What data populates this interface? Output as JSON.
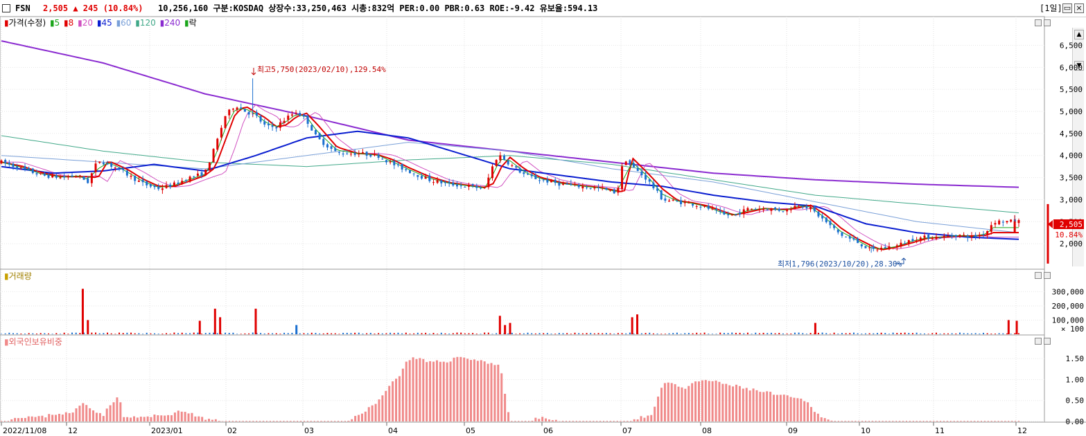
{
  "header": {
    "code": "FSN",
    "price": "2,505",
    "change": "▲ 245 (10.84%)",
    "volume": "10,256,160",
    "info": "구분:KOSDAQ 상장수:33,250,463 시총:832억 PER:0.00 PBR:0.63 ROE:-9.42 유보율:594.13",
    "period": "[1일]",
    "minimize_icon": "minimize-icon",
    "close_icon": "close-icon"
  },
  "price_panel": {
    "legend": {
      "price": "가격(수정)",
      "ma5": "5",
      "ma8": "8",
      "ma20": "20",
      "ma45": "45",
      "ma60": "60",
      "ma120": "120",
      "ma240": "240",
      "drop": "락"
    },
    "high_annotation": "최고5,750(2023/02/10),129.54%",
    "low_annotation": "최저1,796(2023/10/20),28.30%",
    "current_price_tag": "2,505",
    "current_change_tag": "10.84%",
    "y_ticks": [
      "6,500",
      "6,000",
      "5,500",
      "5,000",
      "4,500",
      "4,000",
      "3,500",
      "3,000",
      "2,500",
      "2,000"
    ]
  },
  "volume_panel": {
    "label": "거래량",
    "y_ticks": [
      "300,000",
      "200,000",
      "100,000",
      "× 100"
    ]
  },
  "foreign_panel": {
    "label": "외국인보유비중",
    "y_ticks": [
      "1.50",
      "1.00",
      "0.50",
      "0.00"
    ]
  },
  "x_axis": {
    "ticks": [
      "2022/11/08",
      "12",
      "2023/01",
      "02",
      "03",
      "04",
      "05",
      "06",
      "07",
      "08",
      "09",
      "10",
      "11",
      "12"
    ]
  },
  "colors": {
    "up": "#e00000",
    "down": "#1a6fd0",
    "ma5": "#1aa51a",
    "ma8": "#e00000",
    "ma20": "#d050c0",
    "ma45": "#0a1ed0",
    "ma60": "#7aa0d8",
    "ma120": "#40a888",
    "ma240": "#8a2ad0",
    "foreign_bar": "#f08a8a"
  },
  "chart_data": [
    {
      "type": "candlestick",
      "title": "가격(수정)",
      "ylim": [
        1500,
        6900
      ],
      "x_range": [
        "2022/11/08",
        "2023/12"
      ],
      "price_path": [
        [
          0,
          3850
        ],
        [
          0.02,
          3700
        ],
        [
          0.04,
          3550
        ],
        [
          0.06,
          3500
        ],
        [
          0.075,
          3550
        ],
        [
          0.085,
          3400
        ],
        [
          0.095,
          3900
        ],
        [
          0.105,
          3800
        ],
        [
          0.115,
          3700
        ],
        [
          0.125,
          3550
        ],
        [
          0.14,
          3350
        ],
        [
          0.155,
          3250
        ],
        [
          0.17,
          3350
        ],
        [
          0.185,
          3500
        ],
        [
          0.2,
          3600
        ],
        [
          0.21,
          4200
        ],
        [
          0.22,
          4900
        ],
        [
          0.23,
          5150
        ],
        [
          0.24,
          5000
        ],
        [
          0.25,
          4900
        ],
        [
          0.26,
          4650
        ],
        [
          0.27,
          4650
        ],
        [
          0.28,
          4850
        ],
        [
          0.29,
          5000
        ],
        [
          0.3,
          4800
        ],
        [
          0.31,
          4400
        ],
        [
          0.33,
          4050
        ],
        [
          0.35,
          4050
        ],
        [
          0.37,
          4000
        ],
        [
          0.385,
          3800
        ],
        [
          0.4,
          3650
        ],
        [
          0.42,
          3450
        ],
        [
          0.44,
          3350
        ],
        [
          0.46,
          3300
        ],
        [
          0.475,
          3250
        ],
        [
          0.485,
          3900
        ],
        [
          0.49,
          4000
        ],
        [
          0.5,
          3800
        ],
        [
          0.515,
          3550
        ],
        [
          0.53,
          3450
        ],
        [
          0.55,
          3350
        ],
        [
          0.57,
          3300
        ],
        [
          0.59,
          3250
        ],
        [
          0.605,
          3150
        ],
        [
          0.612,
          3950
        ],
        [
          0.62,
          3750
        ],
        [
          0.635,
          3450
        ],
        [
          0.65,
          3000
        ],
        [
          0.665,
          2950
        ],
        [
          0.68,
          2900
        ],
        [
          0.695,
          2800
        ],
        [
          0.71,
          2650
        ],
        [
          0.72,
          2650
        ],
        [
          0.735,
          2800
        ],
        [
          0.75,
          2800
        ],
        [
          0.77,
          2750
        ],
        [
          0.785,
          2900
        ],
        [
          0.795,
          2800
        ],
        [
          0.81,
          2500
        ],
        [
          0.825,
          2200
        ],
        [
          0.84,
          2050
        ],
        [
          0.855,
          1850
        ],
        [
          0.865,
          1900
        ],
        [
          0.88,
          1950
        ],
        [
          0.895,
          2100
        ],
        [
          0.91,
          2150
        ],
        [
          0.925,
          2150
        ],
        [
          0.94,
          2200
        ],
        [
          0.955,
          2150
        ],
        [
          0.968,
          2260
        ],
        [
          0.975,
          2505
        ]
      ],
      "high": {
        "value": 5750,
        "date": "2023/02/10"
      },
      "low": {
        "value": 1796,
        "date": "2023/10/20"
      },
      "last": 2505,
      "ma240_path": [
        [
          0,
          6600
        ],
        [
          0.1,
          6100
        ],
        [
          0.2,
          5400
        ],
        [
          0.3,
          4900
        ],
        [
          0.4,
          4350
        ],
        [
          0.5,
          4100
        ],
        [
          0.6,
          3850
        ],
        [
          0.7,
          3600
        ],
        [
          0.8,
          3450
        ],
        [
          0.9,
          3350
        ],
        [
          1,
          3280
        ]
      ],
      "ma120_path": [
        [
          0,
          4450
        ],
        [
          0.1,
          4100
        ],
        [
          0.2,
          3850
        ],
        [
          0.3,
          3750
        ],
        [
          0.4,
          3900
        ],
        [
          0.5,
          4000
        ],
        [
          0.6,
          3800
        ],
        [
          0.7,
          3450
        ],
        [
          0.8,
          3100
        ],
        [
          0.9,
          2900
        ],
        [
          1,
          2700
        ]
      ],
      "ma60_path": [
        [
          0,
          4000
        ],
        [
          0.1,
          3850
        ],
        [
          0.2,
          3700
        ],
        [
          0.3,
          4000
        ],
        [
          0.4,
          4300
        ],
        [
          0.5,
          4100
        ],
        [
          0.6,
          3700
        ],
        [
          0.7,
          3400
        ],
        [
          0.8,
          2950
        ],
        [
          0.9,
          2500
        ],
        [
          1,
          2250
        ]
      ],
      "ma45_path": [
        [
          0,
          3750
        ],
        [
          0.05,
          3600
        ],
        [
          0.1,
          3650
        ],
        [
          0.15,
          3800
        ],
        [
          0.2,
          3650
        ],
        [
          0.25,
          4000
        ],
        [
          0.3,
          4400
        ],
        [
          0.35,
          4550
        ],
        [
          0.4,
          4400
        ],
        [
          0.45,
          4050
        ],
        [
          0.5,
          3700
        ],
        [
          0.55,
          3550
        ],
        [
          0.6,
          3400
        ],
        [
          0.65,
          3300
        ],
        [
          0.7,
          3100
        ],
        [
          0.75,
          2950
        ],
        [
          0.8,
          2850
        ],
        [
          0.85,
          2450
        ],
        [
          0.9,
          2250
        ],
        [
          0.95,
          2150
        ],
        [
          1,
          2100
        ]
      ]
    },
    {
      "type": "bar",
      "title": "거래량",
      "unit": "× 100",
      "ylim": [
        0,
        380000
      ],
      "spikes": [
        {
          "x": 0.08,
          "value": 320000
        },
        {
          "x": 0.085,
          "value": 100000
        },
        {
          "x": 0.195,
          "value": 95000
        },
        {
          "x": 0.21,
          "value": 180000
        },
        {
          "x": 0.215,
          "value": 120000
        },
        {
          "x": 0.25,
          "value": 180000
        },
        {
          "x": 0.29,
          "value": 65000
        },
        {
          "x": 0.49,
          "value": 130000
        },
        {
          "x": 0.495,
          "value": 65000
        },
        {
          "x": 0.5,
          "value": 80000
        },
        {
          "x": 0.62,
          "value": 120000
        },
        {
          "x": 0.625,
          "value": 140000
        },
        {
          "x": 0.8,
          "value": 80000
        },
        {
          "x": 0.99,
          "value": 100000
        },
        {
          "x": 0.998,
          "value": 95000
        }
      ]
    },
    {
      "type": "bar",
      "title": "외국인보유비중",
      "ylim": [
        0,
        1.8
      ],
      "profile": [
        [
          0,
          0.0
        ],
        [
          0.02,
          0.12
        ],
        [
          0.04,
          0.1
        ],
        [
          0.05,
          0.18
        ],
        [
          0.07,
          0.2
        ],
        [
          0.08,
          0.45
        ],
        [
          0.1,
          0.15
        ],
        [
          0.115,
          0.65
        ],
        [
          0.12,
          0.1
        ],
        [
          0.14,
          0.1
        ],
        [
          0.16,
          0.15
        ],
        [
          0.18,
          0.25
        ],
        [
          0.2,
          0.05
        ],
        [
          0.22,
          0.0
        ],
        [
          0.34,
          0.0
        ],
        [
          0.35,
          0.15
        ],
        [
          0.37,
          0.45
        ],
        [
          0.38,
          0.85
        ],
        [
          0.39,
          1.05
        ],
        [
          0.4,
          1.5
        ],
        [
          0.41,
          1.5
        ],
        [
          0.42,
          1.4
        ],
        [
          0.44,
          1.45
        ],
        [
          0.45,
          1.55
        ],
        [
          0.46,
          1.5
        ],
        [
          0.47,
          1.45
        ],
        [
          0.49,
          1.35
        ],
        [
          0.5,
          0.0
        ],
        [
          0.52,
          0.0
        ],
        [
          0.53,
          0.1
        ],
        [
          0.55,
          0.0
        ],
        [
          0.62,
          0.0
        ],
        [
          0.64,
          0.2
        ],
        [
          0.65,
          0.9
        ],
        [
          0.66,
          0.95
        ],
        [
          0.67,
          0.75
        ],
        [
          0.68,
          0.9
        ],
        [
          0.69,
          1.0
        ],
        [
          0.7,
          0.95
        ],
        [
          0.72,
          0.85
        ],
        [
          0.74,
          0.75
        ],
        [
          0.76,
          0.65
        ],
        [
          0.77,
          0.6
        ],
        [
          0.79,
          0.5
        ],
        [
          0.8,
          0.25
        ],
        [
          0.81,
          0.05
        ],
        [
          0.82,
          0.0
        ],
        [
          1,
          0.0
        ]
      ]
    }
  ]
}
